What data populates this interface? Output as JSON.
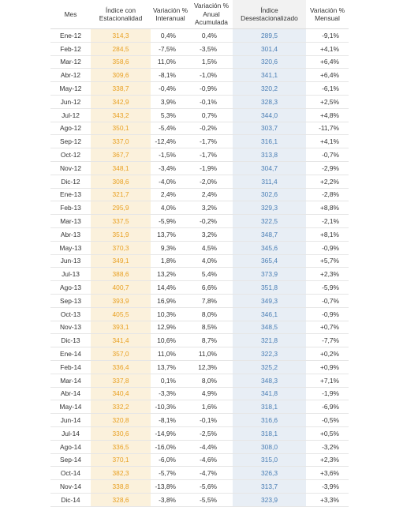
{
  "headers": {
    "mes": "Mes",
    "estacionalidad": "Índice con Estacionalidad",
    "interanual": "Variación % Interanual",
    "anual_acumulada": "Variación % Anual Acumulada",
    "desestacionalizado": "Índice Desestacionalizado",
    "mensual": "Variación % Mensual"
  },
  "rows": [
    {
      "mes": "Ene-12",
      "est": "314,3",
      "inter": "0,4%",
      "acum": "0,4%",
      "desest": "289,5",
      "mens": "-9,1%"
    },
    {
      "mes": "Feb-12",
      "est": "284,5",
      "inter": "-7,5%",
      "acum": "-3,5%",
      "desest": "301,4",
      "mens": "+4,1%"
    },
    {
      "mes": "Mar-12",
      "est": "358,6",
      "inter": "11,0%",
      "acum": "1,5%",
      "desest": "320,6",
      "mens": "+6,4%"
    },
    {
      "mes": "Abr-12",
      "est": "309,6",
      "inter": "-8,1%",
      "acum": "-1,0%",
      "desest": "341,1",
      "mens": "+6,4%"
    },
    {
      "mes": "May-12",
      "est": "338,7",
      "inter": "-0,4%",
      "acum": "-0,9%",
      "desest": "320,2",
      "mens": "-6,1%"
    },
    {
      "mes": "Jun-12",
      "est": "342,9",
      "inter": "3,9%",
      "acum": "-0,1%",
      "desest": "328,3",
      "mens": "+2,5%"
    },
    {
      "mes": "Jul-12",
      "est": "343,2",
      "inter": "5,3%",
      "acum": "0,7%",
      "desest": "344,0",
      "mens": "+4,8%"
    },
    {
      "mes": "Ago-12",
      "est": "350,1",
      "inter": "-5,4%",
      "acum": "-0,2%",
      "desest": "303,7",
      "mens": "-11,7%"
    },
    {
      "mes": "Sep-12",
      "est": "337,0",
      "inter": "-12,4%",
      "acum": "-1,7%",
      "desest": "316,1",
      "mens": "+4,1%"
    },
    {
      "mes": "Oct-12",
      "est": "367,7",
      "inter": "-1,5%",
      "acum": "-1,7%",
      "desest": "313,8",
      "mens": "-0,7%"
    },
    {
      "mes": "Nov-12",
      "est": "348,1",
      "inter": "-3,4%",
      "acum": "-1,9%",
      "desest": "304,7",
      "mens": "-2,9%"
    },
    {
      "mes": "Dic-12",
      "est": "308,6",
      "inter": "-4,0%",
      "acum": "-2,0%",
      "desest": "311,4",
      "mens": "+2,2%"
    },
    {
      "mes": "Ene-13",
      "est": "321,7",
      "inter": "2,4%",
      "acum": "2,4%",
      "desest": "302,6",
      "mens": "-2,8%"
    },
    {
      "mes": "Feb-13",
      "est": "295,9",
      "inter": "4,0%",
      "acum": "3,2%",
      "desest": "329,3",
      "mens": "+8,8%"
    },
    {
      "mes": "Mar-13",
      "est": "337,5",
      "inter": "-5,9%",
      "acum": "-0,2%",
      "desest": "322,5",
      "mens": "-2,1%"
    },
    {
      "mes": "Abr-13",
      "est": "351,9",
      "inter": "13,7%",
      "acum": "3,2%",
      "desest": "348,7",
      "mens": "+8,1%"
    },
    {
      "mes": "May-13",
      "est": "370,3",
      "inter": "9,3%",
      "acum": "4,5%",
      "desest": "345,6",
      "mens": "-0,9%"
    },
    {
      "mes": "Jun-13",
      "est": "349,1",
      "inter": "1,8%",
      "acum": "4,0%",
      "desest": "365,4",
      "mens": "+5,7%"
    },
    {
      "mes": "Jul-13",
      "est": "388,6",
      "inter": "13,2%",
      "acum": "5,4%",
      "desest": "373,9",
      "mens": "+2,3%"
    },
    {
      "mes": "Ago-13",
      "est": "400,7",
      "inter": "14,4%",
      "acum": "6,6%",
      "desest": "351,8",
      "mens": "-5,9%"
    },
    {
      "mes": "Sep-13",
      "est": "393,9",
      "inter": "16,9%",
      "acum": "7,8%",
      "desest": "349,3",
      "mens": "-0,7%"
    },
    {
      "mes": "Oct-13",
      "est": "405,5",
      "inter": "10,3%",
      "acum": "8,0%",
      "desest": "346,1",
      "mens": "-0,9%"
    },
    {
      "mes": "Nov-13",
      "est": "393,1",
      "inter": "12,9%",
      "acum": "8,5%",
      "desest": "348,5",
      "mens": "+0,7%"
    },
    {
      "mes": "Dic-13",
      "est": "341,4",
      "inter": "10,6%",
      "acum": "8,7%",
      "desest": "321,8",
      "mens": "-7,7%"
    },
    {
      "mes": "Ene-14",
      "est": "357,0",
      "inter": "11,0%",
      "acum": "11,0%",
      "desest": "322,3",
      "mens": "+0,2%"
    },
    {
      "mes": "Feb-14",
      "est": "336,4",
      "inter": "13,7%",
      "acum": "12,3%",
      "desest": "325,2",
      "mens": "+0,9%"
    },
    {
      "mes": "Mar-14",
      "est": "337,8",
      "inter": "0,1%",
      "acum": "8,0%",
      "desest": "348,3",
      "mens": "+7,1%"
    },
    {
      "mes": "Abr-14",
      "est": "340,4",
      "inter": "-3,3%",
      "acum": "4,9%",
      "desest": "341,8",
      "mens": "-1,9%"
    },
    {
      "mes": "May-14",
      "est": "332,2",
      "inter": "-10,3%",
      "acum": "1,6%",
      "desest": "318,1",
      "mens": "-6,9%"
    },
    {
      "mes": "Jun-14",
      "est": "320,8",
      "inter": "-8,1%",
      "acum": "-0,1%",
      "desest": "316,6",
      "mens": "-0,5%"
    },
    {
      "mes": "Jul-14",
      "est": "330,6",
      "inter": "-14,9%",
      "acum": "-2,5%",
      "desest": "318,1",
      "mens": "+0,5%"
    },
    {
      "mes": "Ago-14",
      "est": "336,5",
      "inter": "-16,0%",
      "acum": "-4,4%",
      "desest": "308,0",
      "mens": "-3,2%"
    },
    {
      "mes": "Sep-14",
      "est": "370,1",
      "inter": "-6,0%",
      "acum": "-4,6%",
      "desest": "315,0",
      "mens": "+2,3%"
    },
    {
      "mes": "Oct-14",
      "est": "382,3",
      "inter": "-5,7%",
      "acum": "-4,7%",
      "desest": "326,3",
      "mens": "+3,6%"
    },
    {
      "mes": "Nov-14",
      "est": "338,8",
      "inter": "-13,8%",
      "acum": "-5,6%",
      "desest": "313,7",
      "mens": "-3,9%"
    },
    {
      "mes": "Dic-14",
      "est": "328,6",
      "inter": "-3,8%",
      "acum": "-5,5%",
      "desest": "323,9",
      "mens": "+3,3%"
    }
  ],
  "colors": {
    "est_text": "#e8a022",
    "est_bg": "#fbf1dc",
    "desest_text": "#4a7eb4",
    "desest_bg": "#e8eef5"
  }
}
